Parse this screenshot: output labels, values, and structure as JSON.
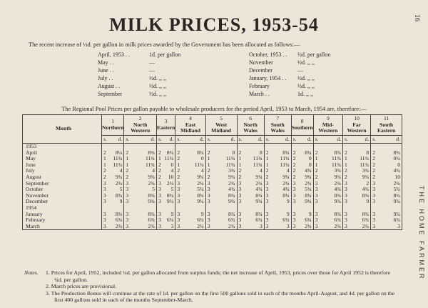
{
  "page_number": "16",
  "side_label": "THE HOME FARMER",
  "title": "MILK PRICES, 1953-54",
  "intro": "The recent increase of ½d. per gallon in milk prices awarded by the Government has been allocated as follows:—",
  "increases": [
    {
      "month_a": "April, 1953  . .",
      "value_a": "1d. per gallon",
      "month_b": "October, 1953  . .",
      "value_b": "½d. per gallon"
    },
    {
      "month_a": "May        . .",
      "value_a": "—",
      "month_b": "November",
      "value_b": "½d.  ,,    ,,"
    },
    {
      "month_a": "June       . .",
      "value_a": "—",
      "month_b": "December",
      "value_b": "—"
    },
    {
      "month_a": "July       . .",
      "value_a": "½d.   ,,    ,,",
      "month_b": "January, 1954  . .",
      "value_b": "½d.  ,,    ,,"
    },
    {
      "month_a": "August  . .",
      "value_a": "½d.   ,,    ,,",
      "month_b": "February",
      "value_b": "½d.  ,,    ,,"
    },
    {
      "month_a": "September",
      "value_a": "½d.   ,,    ,,",
      "month_b": "March   . .",
      "value_b": "1d.  ,,    ,,"
    }
  ],
  "regional_intro": "The Regional Pool Prices per gallon payable to wholesale producers for the period April, 1953 to March, 1954 are, therefore:—",
  "table": {
    "month_header": "Month",
    "sd_s": "s.",
    "sd_d": "d.",
    "regions": [
      {
        "num": "1",
        "name": "Northern"
      },
      {
        "num": "2",
        "name": "North Western"
      },
      {
        "num": "3",
        "name": "Eastern"
      },
      {
        "num": "4",
        "name": "East Midland"
      },
      {
        "num": "5",
        "name": "West Midland"
      },
      {
        "num": "6",
        "name": "North Wales"
      },
      {
        "num": "7",
        "name": "South Wales"
      },
      {
        "num": "8",
        "name": "Southern"
      },
      {
        "num": "9",
        "name": "Mid-Western"
      },
      {
        "num": "10",
        "name": "Far Western"
      },
      {
        "num": "11",
        "name": "South Eastern"
      }
    ],
    "year_1953": "1953",
    "year_1954": "1954",
    "rows_1953": [
      {
        "month": "April",
        "values": [
          [
            "2",
            "8¼"
          ],
          [
            "2",
            "8¾"
          ],
          [
            "2",
            "8¾"
          ],
          [
            "2",
            "8¾"
          ],
          [
            "2",
            "8"
          ],
          [
            "2",
            "8"
          ],
          [
            "2",
            "8¾"
          ],
          [
            "2",
            "8¾"
          ],
          [
            "2",
            "8¾"
          ],
          [
            "2",
            "8"
          ],
          [
            "2",
            "8¾"
          ]
        ]
      },
      {
        "month": "May",
        "values": [
          [
            "1",
            "11¾"
          ],
          [
            "1",
            "11¾"
          ],
          [
            "1",
            "11¾"
          ],
          [
            "2",
            "0"
          ],
          [
            "1",
            "11¾"
          ],
          [
            "1",
            "11¾"
          ],
          [
            "1",
            "11¾"
          ],
          [
            "2",
            "0"
          ],
          [
            "1",
            "11¾"
          ],
          [
            "1",
            "11¾"
          ],
          [
            "2",
            "0¾"
          ]
        ]
      },
      {
        "month": "June",
        "values": [
          [
            "1",
            "11¾"
          ],
          [
            "1",
            "11¾"
          ],
          [
            "2",
            "0"
          ],
          [
            "1",
            "11¾"
          ],
          [
            "1",
            "11¾"
          ],
          [
            "1",
            "11¾"
          ],
          [
            "1",
            "11¾"
          ],
          [
            "2",
            "0"
          ],
          [
            "1",
            "11¾"
          ],
          [
            "1",
            "11¾"
          ],
          [
            "2",
            "0"
          ]
        ]
      },
      {
        "month": "July",
        "values": [
          [
            "2",
            "4"
          ],
          [
            "2",
            "4"
          ],
          [
            "2",
            "4"
          ],
          [
            "2",
            "4"
          ],
          [
            "2",
            "3¾"
          ],
          [
            "2",
            "4"
          ],
          [
            "2",
            "4"
          ],
          [
            "2",
            "4¾"
          ],
          [
            "2",
            "3¾"
          ],
          [
            "2",
            "3¾"
          ],
          [
            "2",
            "4¾"
          ]
        ]
      },
      {
        "month": "August",
        "values": [
          [
            "2",
            "9¾"
          ],
          [
            "2",
            "9¾"
          ],
          [
            "2",
            "10"
          ],
          [
            "2",
            "9¾"
          ],
          [
            "2",
            "9¾"
          ],
          [
            "2",
            "9¾"
          ],
          [
            "2",
            "9¾"
          ],
          [
            "2",
            "9¾"
          ],
          [
            "2",
            "9¾"
          ],
          [
            "2",
            "9¾"
          ],
          [
            "2",
            "10"
          ]
        ]
      },
      {
        "month": "September",
        "values": [
          [
            "3",
            "2¾"
          ],
          [
            "3",
            "2¾"
          ],
          [
            "3",
            "2¾"
          ],
          [
            "3",
            "2¾"
          ],
          [
            "3",
            "2¾"
          ],
          [
            "3",
            "2¾"
          ],
          [
            "3",
            "2¾"
          ],
          [
            "3",
            "2¾"
          ],
          [
            "3",
            "2¾"
          ],
          [
            "3",
            "2"
          ],
          [
            "3",
            "2¾"
          ]
        ]
      },
      {
        "month": "October",
        "values": [
          [
            "3",
            "5"
          ],
          [
            "3",
            "5"
          ],
          [
            "3",
            "5"
          ],
          [
            "3",
            "5¾"
          ],
          [
            "3",
            "4¾"
          ],
          [
            "3",
            "4¾"
          ],
          [
            "3",
            "4¾"
          ],
          [
            "3",
            "5¾"
          ],
          [
            "3",
            "4¾"
          ],
          [
            "3",
            "4¾"
          ],
          [
            "3",
            "5¾"
          ]
        ]
      },
      {
        "month": "November",
        "values": [
          [
            "3",
            "8¾"
          ],
          [
            "3",
            "8¾"
          ],
          [
            "3",
            "8¾"
          ],
          [
            "3",
            "8¾"
          ],
          [
            "3",
            "8¾"
          ],
          [
            "3",
            "8¾"
          ],
          [
            "3",
            "8¾"
          ],
          [
            "3",
            "8¾"
          ],
          [
            "3",
            "8¾"
          ],
          [
            "3",
            "8¾"
          ],
          [
            "3",
            "8¾"
          ]
        ]
      },
      {
        "month": "December",
        "values": [
          [
            "3",
            "9"
          ],
          [
            "3",
            "9¾"
          ],
          [
            "3",
            "9¾"
          ],
          [
            "3",
            "9¾"
          ],
          [
            "3",
            "9¾"
          ],
          [
            "3",
            "9¾"
          ],
          [
            "3",
            "9"
          ],
          [
            "3",
            "9¾"
          ],
          [
            "3",
            "9¾"
          ],
          [
            "3",
            "9"
          ],
          [
            "3",
            "9¾"
          ]
        ]
      }
    ],
    "rows_1954": [
      {
        "month": "January",
        "values": [
          [
            "3",
            "8¾"
          ],
          [
            "3",
            "8¾"
          ],
          [
            "3",
            "9"
          ],
          [
            "3",
            "9"
          ],
          [
            "3",
            "8¾"
          ],
          [
            "3",
            "8¾"
          ],
          [
            "3",
            "9"
          ],
          [
            "3",
            "9"
          ],
          [
            "3",
            "8¾"
          ],
          [
            "3",
            "8¾"
          ],
          [
            "3",
            "9¾"
          ]
        ]
      },
      {
        "month": "February",
        "values": [
          [
            "3",
            "6¾"
          ],
          [
            "3",
            "6¾"
          ],
          [
            "3",
            "6¾"
          ],
          [
            "3",
            "6¾"
          ],
          [
            "3",
            "6¾"
          ],
          [
            "3",
            "6¾"
          ],
          [
            "3",
            "6¾"
          ],
          [
            "3",
            "6¾"
          ],
          [
            "3",
            "6¾"
          ],
          [
            "3",
            "6¾"
          ],
          [
            "3",
            "6¾"
          ]
        ]
      },
      {
        "month": "March",
        "values": [
          [
            "3",
            "2¾"
          ],
          [
            "3",
            "2¾"
          ],
          [
            "3",
            "3"
          ],
          [
            "3",
            "2¾"
          ],
          [
            "3",
            "2¾"
          ],
          [
            "3",
            "3"
          ],
          [
            "3",
            "3"
          ],
          [
            "3",
            "2¾"
          ],
          [
            "3",
            "2¾"
          ],
          [
            "3",
            "2¾"
          ],
          [
            "3",
            "3"
          ]
        ]
      }
    ]
  },
  "notes": {
    "label": "Notes.",
    "items": [
      "1. Prices for April, 1952, included ¼d. per gallon allocated from surplus funds; the net increase of April, 1953, prices over those for April 1952 is therefore ¾d. per gallon.",
      "2. March prices are provisional.",
      "3. The Production Bonus will continue at the rate of 1d. per gallon on the first 500 gallons sold in each of the months April-August, and 4d. per gallon on the first 400 gallons sold in each of the months September-March."
    ]
  }
}
